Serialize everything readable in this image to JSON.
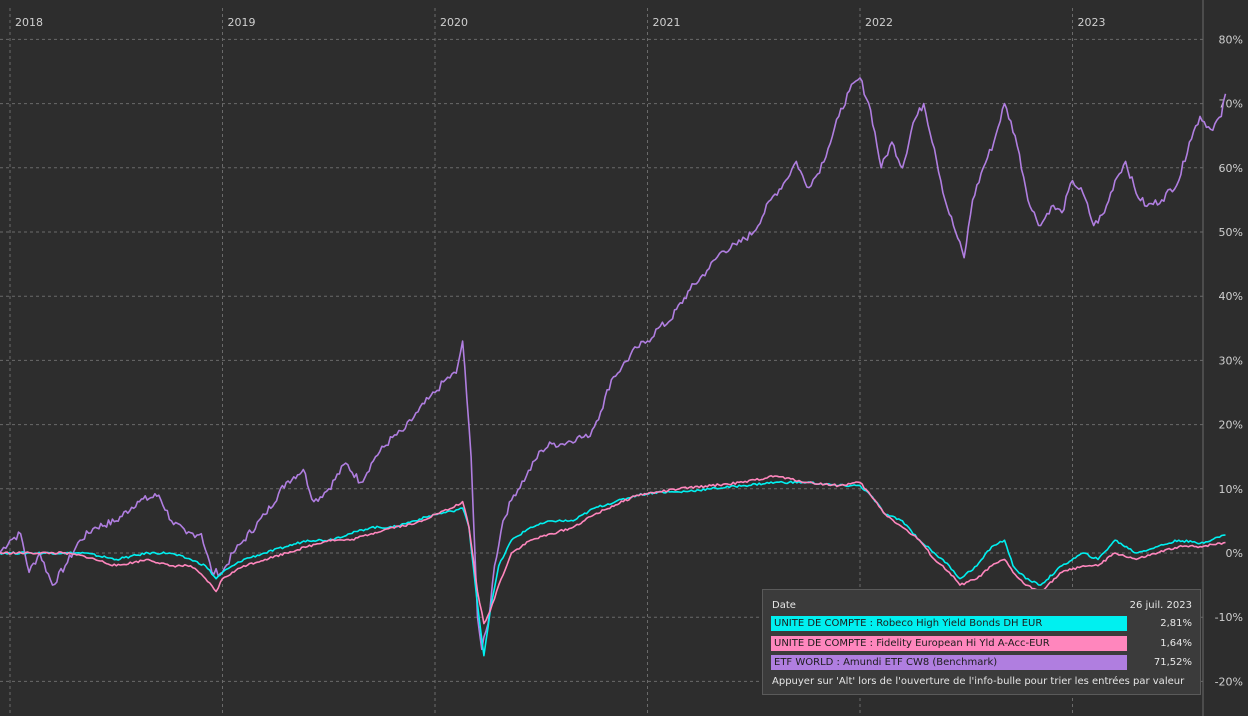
{
  "chart_data": {
    "type": "line",
    "x_ticks": [
      "2018",
      "2019",
      "2020",
      "2021",
      "2022",
      "2023"
    ],
    "y_ticks": [
      "80%",
      "70%",
      "60%",
      "50%",
      "40%",
      "30%",
      "20%",
      "10%",
      "0%",
      "-10%",
      "-20%"
    ],
    "y_tick_values": [
      80,
      70,
      60,
      50,
      40,
      30,
      20,
      10,
      0,
      -10,
      -20
    ],
    "ylim": [
      -21,
      82
    ],
    "xlim": [
      2017.95,
      2023.62
    ],
    "grid": true,
    "series": [
      {
        "name": "ETF WORLD : Amundi ETF CW8 (Benchmark)",
        "color": "#b07ee0",
        "points": [
          [
            2017.95,
            0
          ],
          [
            2018.0,
            2
          ],
          [
            2018.05,
            3
          ],
          [
            2018.09,
            -3
          ],
          [
            2018.14,
            0
          ],
          [
            2018.2,
            -5
          ],
          [
            2018.26,
            -2
          ],
          [
            2018.33,
            2
          ],
          [
            2018.4,
            4
          ],
          [
            2018.5,
            5
          ],
          [
            2018.6,
            8
          ],
          [
            2018.7,
            9
          ],
          [
            2018.76,
            5
          ],
          [
            2018.83,
            3
          ],
          [
            2018.9,
            3
          ],
          [
            2018.95,
            -3
          ],
          [
            2019.0,
            -3
          ],
          [
            2019.05,
            0
          ],
          [
            2019.1,
            2
          ],
          [
            2019.2,
            6
          ],
          [
            2019.3,
            11
          ],
          [
            2019.38,
            13
          ],
          [
            2019.43,
            8
          ],
          [
            2019.5,
            10
          ],
          [
            2019.58,
            14
          ],
          [
            2019.65,
            11
          ],
          [
            2019.72,
            15
          ],
          [
            2019.8,
            18
          ],
          [
            2019.85,
            19
          ],
          [
            2019.92,
            22
          ],
          [
            2019.97,
            24
          ],
          [
            2020.0,
            25
          ],
          [
            2020.05,
            27
          ],
          [
            2020.1,
            28
          ],
          [
            2020.13,
            33
          ],
          [
            2020.15,
            24
          ],
          [
            2020.17,
            15
          ],
          [
            2020.2,
            -10
          ],
          [
            2020.22,
            -15
          ],
          [
            2020.25,
            -11
          ],
          [
            2020.28,
            -2
          ],
          [
            2020.32,
            5
          ],
          [
            2020.37,
            9
          ],
          [
            2020.43,
            12
          ],
          [
            2020.5,
            16
          ],
          [
            2020.55,
            17
          ],
          [
            2020.6,
            17
          ],
          [
            2020.67,
            18
          ],
          [
            2020.72,
            18
          ],
          [
            2020.78,
            22
          ],
          [
            2020.83,
            27
          ],
          [
            2020.88,
            29
          ],
          [
            2020.95,
            32
          ],
          [
            2021.0,
            33
          ],
          [
            2021.05,
            35
          ],
          [
            2021.1,
            36
          ],
          [
            2021.2,
            41
          ],
          [
            2021.28,
            44
          ],
          [
            2021.35,
            47
          ],
          [
            2021.42,
            48
          ],
          [
            2021.5,
            50
          ],
          [
            2021.58,
            55
          ],
          [
            2021.65,
            58
          ],
          [
            2021.7,
            61
          ],
          [
            2021.75,
            57
          ],
          [
            2021.8,
            59
          ],
          [
            2021.85,
            63
          ],
          [
            2021.9,
            68
          ],
          [
            2021.95,
            72
          ],
          [
            2022.0,
            74
          ],
          [
            2022.05,
            69
          ],
          [
            2022.1,
            60
          ],
          [
            2022.15,
            64
          ],
          [
            2022.2,
            60
          ],
          [
            2022.25,
            67
          ],
          [
            2022.3,
            70
          ],
          [
            2022.35,
            63
          ],
          [
            2022.4,
            55
          ],
          [
            2022.45,
            50
          ],
          [
            2022.49,
            46
          ],
          [
            2022.53,
            55
          ],
          [
            2022.58,
            60
          ],
          [
            2022.63,
            64
          ],
          [
            2022.68,
            70
          ],
          [
            2022.73,
            65
          ],
          [
            2022.8,
            54
          ],
          [
            2022.85,
            51
          ],
          [
            2022.9,
            54
          ],
          [
            2022.95,
            53
          ],
          [
            2023.0,
            58
          ],
          [
            2023.05,
            56
          ],
          [
            2023.1,
            51
          ],
          [
            2023.15,
            53
          ],
          [
            2023.2,
            58
          ],
          [
            2023.25,
            61
          ],
          [
            2023.3,
            56
          ],
          [
            2023.35,
            54
          ],
          [
            2023.42,
            55
          ],
          [
            2023.5,
            58
          ],
          [
            2023.55,
            64
          ],
          [
            2023.6,
            68
          ],
          [
            2023.65,
            66
          ],
          [
            2023.7,
            68
          ],
          [
            2023.72,
            71.52
          ]
        ]
      },
      {
        "name": "UNITE DE COMPTE : Robeco High Yield Bonds DH EUR",
        "color": "#00f0f0",
        "points": [
          [
            2017.95,
            0
          ],
          [
            2018.1,
            0
          ],
          [
            2018.25,
            0
          ],
          [
            2018.35,
            0
          ],
          [
            2018.5,
            -1
          ],
          [
            2018.65,
            0
          ],
          [
            2018.75,
            0
          ],
          [
            2018.85,
            -1
          ],
          [
            2018.92,
            -2
          ],
          [
            2018.97,
            -4
          ],
          [
            2019.0,
            -3
          ],
          [
            2019.1,
            -1
          ],
          [
            2019.2,
            0
          ],
          [
            2019.3,
            1
          ],
          [
            2019.4,
            2
          ],
          [
            2019.5,
            2
          ],
          [
            2019.6,
            3
          ],
          [
            2019.7,
            4
          ],
          [
            2019.8,
            4
          ],
          [
            2019.9,
            5
          ],
          [
            2020.0,
            6
          ],
          [
            2020.08,
            6.5
          ],
          [
            2020.13,
            7
          ],
          [
            2020.16,
            4
          ],
          [
            2020.2,
            -8
          ],
          [
            2020.23,
            -16
          ],
          [
            2020.26,
            -9
          ],
          [
            2020.3,
            -2
          ],
          [
            2020.36,
            2
          ],
          [
            2020.45,
            4
          ],
          [
            2020.55,
            5
          ],
          [
            2020.65,
            5
          ],
          [
            2020.75,
            7
          ],
          [
            2020.85,
            8
          ],
          [
            2020.95,
            9
          ],
          [
            2021.05,
            9.5
          ],
          [
            2021.15,
            9.5
          ],
          [
            2021.3,
            10
          ],
          [
            2021.45,
            10.5
          ],
          [
            2021.6,
            11
          ],
          [
            2021.75,
            11
          ],
          [
            2021.9,
            10.5
          ],
          [
            2022.0,
            10.5
          ],
          [
            2022.05,
            9
          ],
          [
            2022.12,
            6
          ],
          [
            2022.2,
            5
          ],
          [
            2022.28,
            2
          ],
          [
            2022.35,
            0
          ],
          [
            2022.42,
            -2
          ],
          [
            2022.47,
            -4
          ],
          [
            2022.55,
            -2
          ],
          [
            2022.62,
            1
          ],
          [
            2022.68,
            2
          ],
          [
            2022.72,
            -2
          ],
          [
            2022.78,
            -4
          ],
          [
            2022.85,
            -5
          ],
          [
            2022.95,
            -2
          ],
          [
            2023.05,
            0
          ],
          [
            2023.12,
            -1
          ],
          [
            2023.2,
            2
          ],
          [
            2023.3,
            0
          ],
          [
            2023.4,
            1
          ],
          [
            2023.5,
            2
          ],
          [
            2023.6,
            1.5
          ],
          [
            2023.72,
            2.81
          ]
        ]
      },
      {
        "name": "UNITE DE COMPTE : Fidelity European Hi Yld A-Acc-EUR",
        "color": "#ff86bd",
        "points": [
          [
            2017.95,
            0
          ],
          [
            2018.1,
            0
          ],
          [
            2018.25,
            0
          ],
          [
            2018.35,
            -0.5
          ],
          [
            2018.5,
            -2
          ],
          [
            2018.65,
            -1
          ],
          [
            2018.75,
            -2
          ],
          [
            2018.85,
            -2
          ],
          [
            2018.92,
            -4
          ],
          [
            2018.97,
            -6
          ],
          [
            2019.0,
            -4
          ],
          [
            2019.1,
            -2
          ],
          [
            2019.2,
            -1
          ],
          [
            2019.3,
            0
          ],
          [
            2019.4,
            1
          ],
          [
            2019.5,
            2
          ],
          [
            2019.6,
            2
          ],
          [
            2019.7,
            3
          ],
          [
            2019.8,
            4
          ],
          [
            2019.9,
            4.5
          ],
          [
            2020.0,
            6
          ],
          [
            2020.08,
            7
          ],
          [
            2020.13,
            8
          ],
          [
            2020.16,
            4
          ],
          [
            2020.2,
            -6
          ],
          [
            2020.23,
            -11
          ],
          [
            2020.26,
            -9
          ],
          [
            2020.3,
            -5
          ],
          [
            2020.36,
            0
          ],
          [
            2020.45,
            2
          ],
          [
            2020.55,
            3
          ],
          [
            2020.65,
            4
          ],
          [
            2020.75,
            6
          ],
          [
            2020.85,
            7.5
          ],
          [
            2020.95,
            9
          ],
          [
            2021.05,
            9.5
          ],
          [
            2021.15,
            10
          ],
          [
            2021.3,
            10.5
          ],
          [
            2021.45,
            11
          ],
          [
            2021.6,
            12
          ],
          [
            2021.75,
            11
          ],
          [
            2021.9,
            10.5
          ],
          [
            2022.0,
            11
          ],
          [
            2022.05,
            9
          ],
          [
            2022.12,
            6
          ],
          [
            2022.2,
            4
          ],
          [
            2022.28,
            2
          ],
          [
            2022.35,
            -1
          ],
          [
            2022.42,
            -3
          ],
          [
            2022.47,
            -5
          ],
          [
            2022.55,
            -4
          ],
          [
            2022.62,
            -2
          ],
          [
            2022.68,
            -1
          ],
          [
            2022.72,
            -3
          ],
          [
            2022.78,
            -5
          ],
          [
            2022.85,
            -6
          ],
          [
            2022.95,
            -3
          ],
          [
            2023.05,
            -2
          ],
          [
            2023.12,
            -2
          ],
          [
            2023.2,
            0
          ],
          [
            2023.3,
            -1
          ],
          [
            2023.4,
            0
          ],
          [
            2023.5,
            1
          ],
          [
            2023.6,
            1
          ],
          [
            2023.72,
            1.64
          ]
        ]
      }
    ]
  },
  "tooltip": {
    "date_label": "Date",
    "date_value": "26 juil. 2023",
    "rows": [
      {
        "name": "UNITE DE COMPTE : Robeco High Yield Bonds DH EUR",
        "value": "2,81%",
        "color": "#00f0f0"
      },
      {
        "name": "UNITE DE COMPTE : Fidelity European Hi Yld A-Acc-EUR",
        "value": "1,64%",
        "color": "#ff86bd"
      },
      {
        "name": "ETF WORLD : Amundi ETF CW8 (Benchmark)",
        "value": "71,52%",
        "color": "#b07ee0"
      }
    ],
    "note": "Appuyer sur 'Alt' lors de l'ouverture de l'info-bulle pour trier les entrées par valeur"
  }
}
